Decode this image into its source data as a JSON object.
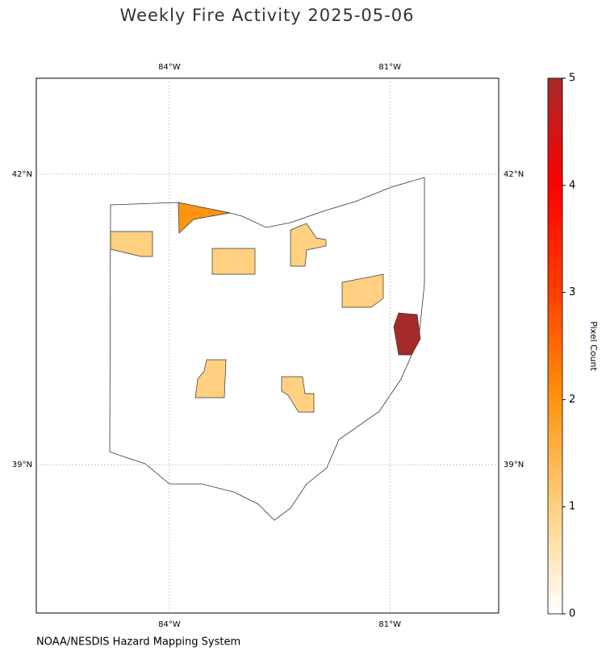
{
  "chart_data": {
    "type": "choropleth",
    "title": "Weekly Fire Activity 2025-05-06",
    "source": "NOAA/NESDIS Hazard Mapping System",
    "xlim": [
      -85.81,
      -79.52
    ],
    "ylim": [
      37.47,
      42.99
    ],
    "xticks": [
      {
        "value": -84,
        "label": "84°W"
      },
      {
        "value": -81,
        "label": "81°W"
      }
    ],
    "yticks": [
      {
        "value": 42,
        "label": "42°N"
      },
      {
        "value": 39,
        "label": "39°N"
      }
    ],
    "grid": true,
    "values": [
      2,
      1,
      1,
      1,
      1,
      5,
      1,
      1
    ],
    "colorbar": {
      "label": "Pixel Count",
      "clim": [
        0,
        5
      ],
      "ticks": [
        0,
        1,
        2,
        3,
        4,
        5
      ],
      "colors": [
        "#ffffff",
        "#fed080",
        "#fe9410",
        "#ff4000",
        "#ff0000",
        "#a52a2a"
      ]
    }
  }
}
